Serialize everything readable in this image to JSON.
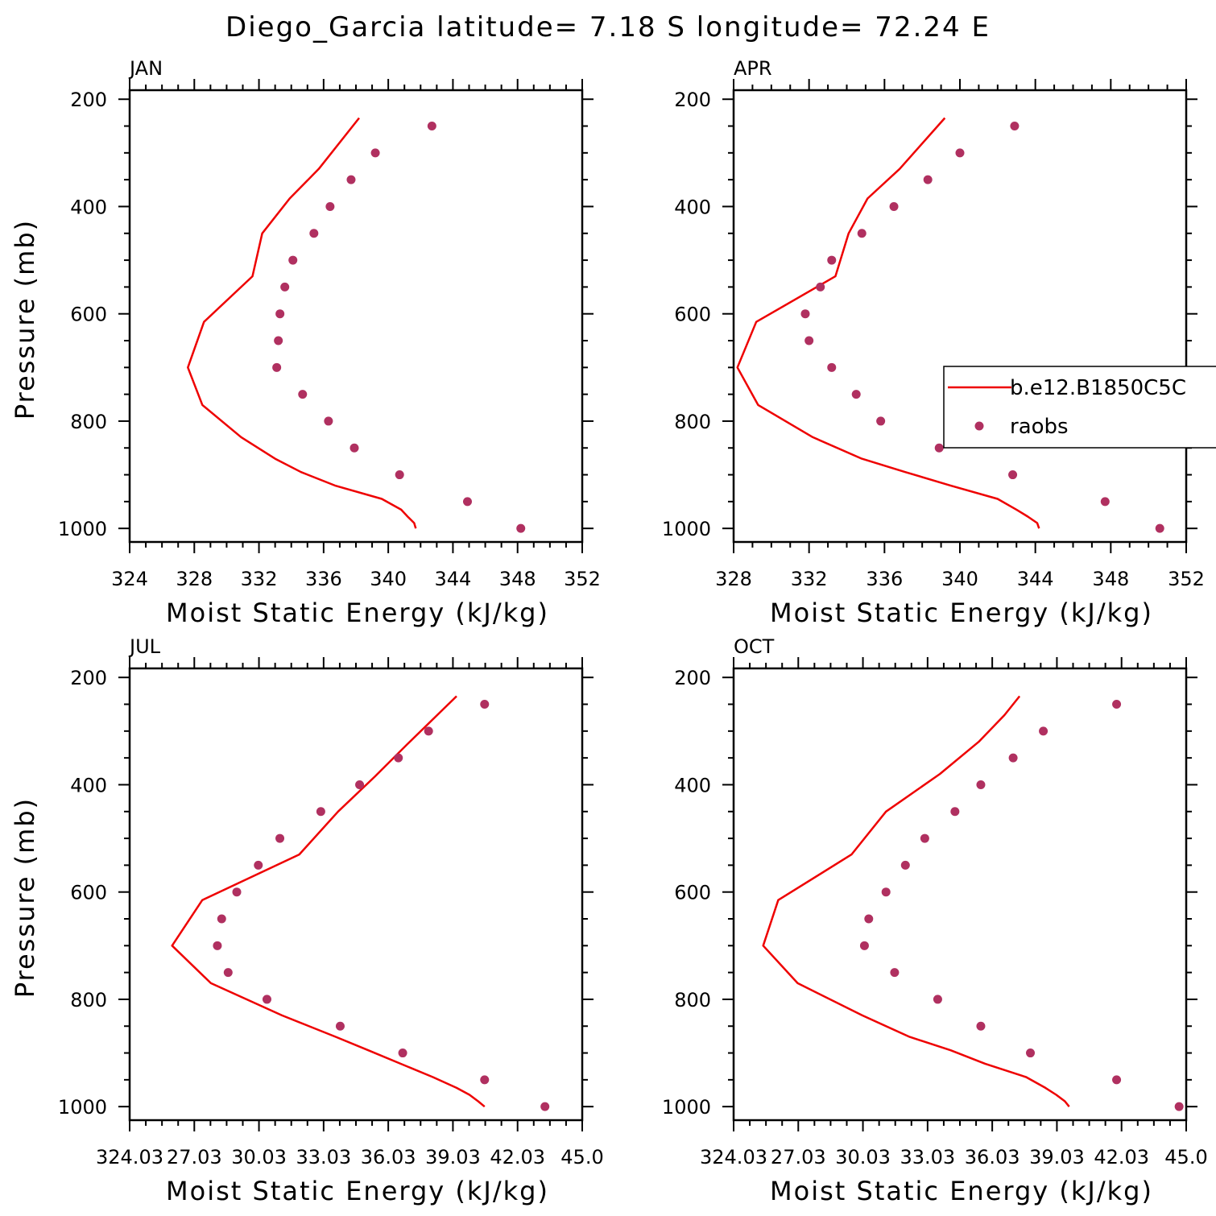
{
  "figure_title": "Diego_Garcia  latitude= 7.18 S longitude= 72.24 E",
  "colors": {
    "model": "#ee0000",
    "raobs": "#b03060",
    "axis": "#000000"
  },
  "legend": {
    "model_label": "b.e12.B1850C5C",
    "obs_label": "raobs"
  },
  "chart_data": [
    {
      "type": "line",
      "panel": "JAN",
      "xlabel": "Moist Static Energy (kJ/kg)",
      "ylabel": "Pressure (mb)",
      "xlim": [
        324,
        352
      ],
      "ylim": [
        1000,
        200
      ],
      "x_ticks": [
        "324",
        "328",
        "332",
        "336",
        "340",
        "344",
        "348",
        "352"
      ],
      "y_ticks": [
        "200",
        "400",
        "600",
        "800",
        "1000"
      ],
      "model": {
        "pressure": [
          235,
          330,
          385,
          450,
          530,
          615,
          700,
          770,
          830,
          870,
          895,
          920,
          945,
          965,
          978,
          990,
          1000
        ],
        "mse": [
          338.2,
          335.7,
          333.9,
          332.2,
          331.6,
          328.6,
          327.6,
          328.5,
          330.9,
          333.0,
          334.6,
          336.7,
          339.6,
          340.8,
          341.2,
          341.6,
          341.7
        ]
      },
      "raobs": {
        "pressure": [
          250,
          300,
          350,
          400,
          450,
          500,
          550,
          600,
          650,
          700,
          750,
          800,
          850,
          900,
          950,
          1000
        ],
        "mse": [
          342.7,
          339.2,
          337.7,
          336.4,
          335.4,
          334.1,
          333.6,
          333.3,
          333.2,
          333.1,
          334.7,
          336.3,
          337.9,
          340.7,
          344.9,
          348.2
        ]
      },
      "grid": false
    },
    {
      "type": "line",
      "panel": "APR",
      "xlabel": "Moist Static Energy (kJ/kg)",
      "xlim": [
        328,
        352
      ],
      "ylim": [
        1000,
        200
      ],
      "x_ticks": [
        "328",
        "332",
        "336",
        "340",
        "344",
        "348",
        "352"
      ],
      "y_ticks": [
        "200",
        "400",
        "600",
        "800",
        "1000"
      ],
      "model": {
        "pressure": [
          235,
          330,
          385,
          450,
          530,
          615,
          700,
          770,
          830,
          870,
          895,
          920,
          945,
          965,
          978,
          990,
          1000
        ],
        "mse": [
          339.2,
          336.8,
          335.1,
          334.1,
          333.4,
          329.2,
          328.2,
          329.3,
          332.2,
          334.8,
          337.1,
          339.5,
          342.0,
          343.0,
          343.6,
          344.1,
          344.2
        ]
      },
      "raobs": {
        "pressure": [
          250,
          300,
          350,
          400,
          450,
          500,
          550,
          600,
          650,
          700,
          750,
          800,
          850,
          900,
          950,
          1000
        ],
        "mse": [
          342.9,
          340.0,
          338.3,
          336.5,
          334.8,
          333.2,
          332.6,
          331.8,
          332.0,
          333.2,
          334.5,
          335.8,
          338.9,
          342.8,
          347.7,
          350.6
        ]
      },
      "legend": "top-right",
      "grid": false
    },
    {
      "type": "line",
      "panel": "JUL",
      "xlabel": "Moist Static Energy (kJ/kg)",
      "ylabel": "Pressure (mb)",
      "xlim": [
        324.03,
        345.03
      ],
      "ylim": [
        1000,
        200
      ],
      "x_ticks": [
        "324.03",
        "27.03",
        "30.03",
        "33.03",
        "36.03",
        "39.03",
        "42.03",
        "45.0"
      ],
      "y_ticks": [
        "200",
        "400",
        "600",
        "800",
        "1000"
      ],
      "model": {
        "pressure": [
          235,
          325,
          385,
          450,
          530,
          615,
          700,
          770,
          830,
          870,
          895,
          920,
          945,
          965,
          978,
          990,
          1000
        ],
        "mse": [
          339.2,
          336.9,
          335.4,
          333.7,
          331.9,
          327.4,
          326.0,
          327.8,
          331.1,
          333.6,
          335.1,
          336.6,
          338.1,
          339.2,
          339.8,
          340.2,
          340.5
        ]
      },
      "raobs": {
        "pressure": [
          250,
          300,
          350,
          400,
          450,
          500,
          550,
          600,
          650,
          700,
          750,
          800,
          850,
          900,
          950,
          1000
        ],
        "mse": [
          340.5,
          337.9,
          336.5,
          334.7,
          332.9,
          331.0,
          330.0,
          329.0,
          328.3,
          328.1,
          328.6,
          330.4,
          333.8,
          336.7,
          340.5,
          343.3
        ]
      },
      "grid": false
    },
    {
      "type": "line",
      "panel": "OCT",
      "xlabel": "Moist Static Energy (kJ/kg)",
      "xlim": [
        324.03,
        345.03
      ],
      "ylim": [
        1000,
        200
      ],
      "x_ticks": [
        "324.03",
        "27.03",
        "30.03",
        "33.03",
        "36.03",
        "39.03",
        "42.03",
        "45.0"
      ],
      "y_ticks": [
        "200",
        "400",
        "600",
        "800",
        "1000"
      ],
      "model": {
        "pressure": [
          235,
          270,
          320,
          380,
          450,
          530,
          615,
          700,
          770,
          830,
          870,
          895,
          920,
          945,
          965,
          978,
          990,
          1000
        ],
        "mse": [
          337.3,
          336.6,
          335.4,
          333.6,
          331.1,
          329.5,
          326.1,
          325.4,
          327.0,
          330.0,
          332.2,
          334.1,
          335.7,
          337.6,
          338.5,
          339.0,
          339.4,
          339.6
        ]
      },
      "raobs": {
        "pressure": [
          250,
          300,
          350,
          400,
          450,
          500,
          550,
          600,
          650,
          700,
          750,
          800,
          850,
          900,
          950,
          1000
        ],
        "mse": [
          341.8,
          338.4,
          337.0,
          335.5,
          334.3,
          332.9,
          332.0,
          331.1,
          330.3,
          330.1,
          331.5,
          333.5,
          335.5,
          337.8,
          341.8,
          344.7
        ]
      },
      "grid": false
    }
  ]
}
